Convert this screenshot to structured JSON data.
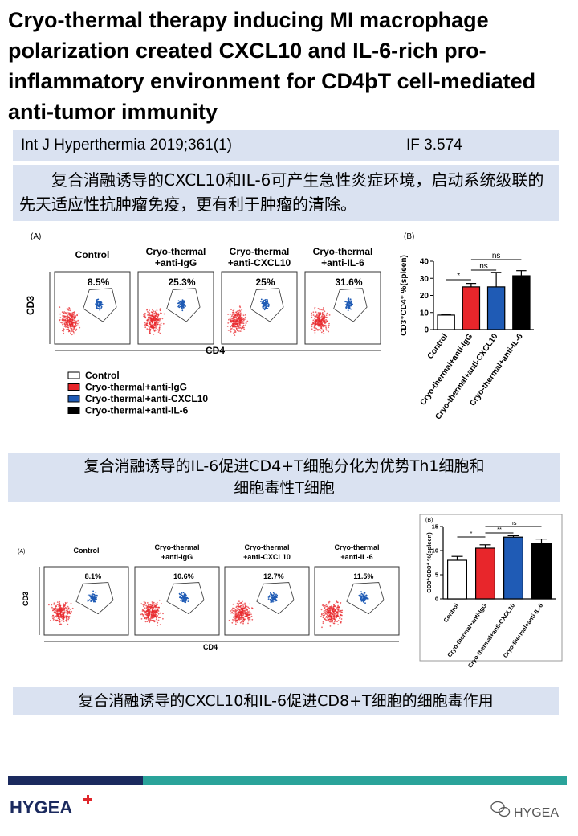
{
  "header": {
    "title": "Cryo-thermal therapy inducing MI macrophage polarization created CXCL10 and IL-6-rich pro-inflammatory environment for CD4þT cell-mediated anti-tumor immunity"
  },
  "citation": {
    "journal": "Int J Hyperthermia 2019;361(1)",
    "impact_factor": "IF 3.574"
  },
  "summary_1": "复合消融诱导的CXCL10和IL-6可产生急性炎症环境，启动系统级联的先天适应性抗肿瘤免疫，更有利于肿瘤的清除。",
  "figure_1": {
    "panel_a": "(A)",
    "panel_b": "(B)",
    "groups": [
      [
        "Control"
      ],
      [
        "Cryo-thermal",
        "+anti-IgG"
      ],
      [
        "Cryo-thermal",
        "+anti-CXCL10"
      ],
      [
        "Cryo-thermal",
        "+anti-IL-6"
      ]
    ],
    "percentages": [
      "8.5%",
      "25.3%",
      "25%",
      "31.6%"
    ],
    "y_label": "CD3",
    "x_label": "CD4",
    "legend": [
      "Control",
      "Cryo-thermal+anti-IgG",
      "Cryo-thermal+anti-CXCL10",
      "Cryo-thermal+anti-IL-6"
    ],
    "bar_chart": {
      "type": "bar",
      "y_label": "CD3⁺CD4⁺ %(spleen)",
      "categories": [
        "Control",
        "Cryo-thermal+anti-IgG",
        "Cryo-thermal+anti-CXCL10",
        "Cryo-thermal+anti-IL-6"
      ],
      "values": [
        8.5,
        25,
        25,
        31.5
      ],
      "errors": [
        0.5,
        2,
        8.5,
        3
      ],
      "colors": [
        "#ffffff",
        "#e8262b",
        "#1f5bb5",
        "#000000"
      ],
      "ylim": [
        0,
        40
      ],
      "yticks": [
        0,
        10,
        20,
        30,
        40
      ],
      "significance": [
        "*",
        "ns",
        "ns"
      ]
    }
  },
  "summary_2": [
    "复合消融诱导的IL-6促进CD4+T细胞分化为优势Th1细胞和",
    "细胞毒性T细胞"
  ],
  "figure_2": {
    "panel_a": "(A)",
    "panel_b": "(B)",
    "groups": [
      [
        "Control"
      ],
      [
        "Cryo-thermal",
        "+anti-IgG"
      ],
      [
        "Cryo-thermal",
        "+anti-CXCL10"
      ],
      [
        "Cryo-thermal",
        "+anti-IL-6"
      ]
    ],
    "percentages": [
      "8.1%",
      "10.6%",
      "12.7%",
      "11.5%"
    ],
    "y_label": "CD3",
    "x_label": "CD4",
    "bar_chart": {
      "type": "bar",
      "y_label": "CD3⁺CD8⁺ %(spleen)",
      "categories": [
        "Control",
        "Cryo-thermal+anti-IgG",
        "Cryo-thermal+anti-CXCL10",
        "Cryo-thermal+anti-IL-6"
      ],
      "values": [
        8,
        10.5,
        12.8,
        11.5
      ],
      "errors": [
        0.8,
        0.7,
        0.3,
        0.9
      ],
      "colors": [
        "#ffffff",
        "#e8262b",
        "#1f5bb5",
        "#000000"
      ],
      "ylim": [
        0,
        15
      ],
      "yticks": [
        0,
        5,
        10,
        15
      ],
      "significance": [
        "*",
        "**",
        "ns"
      ]
    }
  },
  "summary_3": "复合消融诱导的CXCL10和IL-6促进CD8+T细胞的细胞毒作用",
  "footer": {
    "logo": "HYGEA",
    "account": "HYGEA"
  }
}
